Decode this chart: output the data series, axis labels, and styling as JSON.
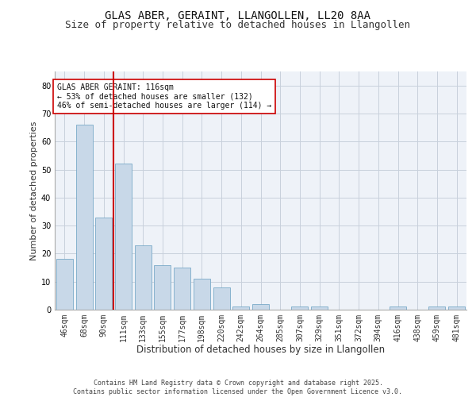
{
  "title": "GLAS ABER, GERAINT, LLANGOLLEN, LL20 8AA",
  "subtitle": "Size of property relative to detached houses in Llangollen",
  "xlabel": "Distribution of detached houses by size in Llangollen",
  "ylabel": "Number of detached properties",
  "categories": [
    "46sqm",
    "68sqm",
    "90sqm",
    "111sqm",
    "133sqm",
    "155sqm",
    "177sqm",
    "198sqm",
    "220sqm",
    "242sqm",
    "264sqm",
    "285sqm",
    "307sqm",
    "329sqm",
    "351sqm",
    "372sqm",
    "394sqm",
    "416sqm",
    "438sqm",
    "459sqm",
    "481sqm"
  ],
  "values": [
    18,
    66,
    33,
    52,
    23,
    16,
    15,
    11,
    8,
    1,
    2,
    0,
    1,
    1,
    0,
    0,
    0,
    1,
    0,
    1,
    1
  ],
  "bar_color": "#c8d8e8",
  "bar_edge_color": "#7aaac8",
  "grid_color": "#c8d0dc",
  "background_color": "#eef2f8",
  "vline_color": "#cc0000",
  "annotation_text": "GLAS ABER GERAINT: 116sqm\n← 53% of detached houses are smaller (132)\n46% of semi-detached houses are larger (114) →",
  "annotation_box_color": "#ffffff",
  "annotation_box_edge_color": "#cc0000",
  "ylim": [
    0,
    85
  ],
  "yticks": [
    0,
    10,
    20,
    30,
    40,
    50,
    60,
    70,
    80
  ],
  "footer_text": "Contains HM Land Registry data © Crown copyright and database right 2025.\nContains public sector information licensed under the Open Government Licence v3.0.",
  "title_fontsize": 10,
  "subtitle_fontsize": 9,
  "xlabel_fontsize": 8.5,
  "ylabel_fontsize": 8,
  "tick_fontsize": 7,
  "annotation_fontsize": 7,
  "footer_fontsize": 6
}
